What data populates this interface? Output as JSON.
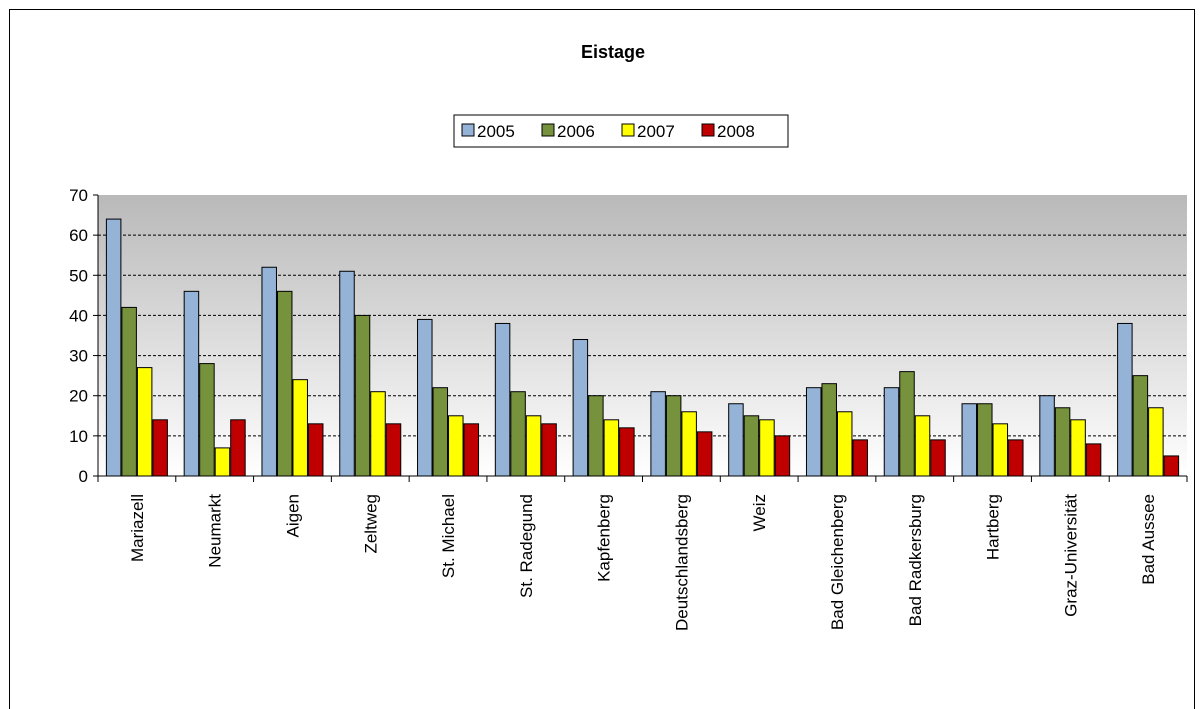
{
  "chart_data": {
    "type": "bar",
    "title": "Eistage",
    "categories": [
      "Mariazell",
      "Neumarkt",
      "Aigen",
      "Zeltweg",
      "St. Michael",
      "St. Radegund",
      "Kapfenberg",
      "Deutschlandsberg",
      "Weiz",
      "Bad Gleichenberg",
      "Bad Radkersburg",
      "Hartberg",
      "Graz-Universität",
      "Bad Aussee"
    ],
    "series": [
      {
        "name": "2005",
        "color": "#95b3d7",
        "values": [
          64,
          46,
          52,
          51,
          39,
          38,
          34,
          21,
          18,
          22,
          22,
          18,
          20,
          38
        ]
      },
      {
        "name": "2006",
        "color": "#76923c",
        "values": [
          42,
          28,
          46,
          40,
          22,
          21,
          20,
          20,
          15,
          23,
          26,
          18,
          17,
          25
        ]
      },
      {
        "name": "2007",
        "color": "#ffff00",
        "values": [
          27,
          7,
          24,
          21,
          15,
          15,
          14,
          16,
          14,
          16,
          15,
          13,
          14,
          17
        ]
      },
      {
        "name": "2008",
        "color": "#c00000",
        "values": [
          14,
          14,
          13,
          13,
          13,
          13,
          12,
          11,
          10,
          9,
          9,
          9,
          8,
          5
        ]
      }
    ],
    "yticks": [
      "0",
      "10",
      "20",
      "30",
      "40",
      "50",
      "60",
      "70"
    ],
    "ylim": [
      0,
      70
    ],
    "grid": true,
    "legend_position": "top"
  }
}
